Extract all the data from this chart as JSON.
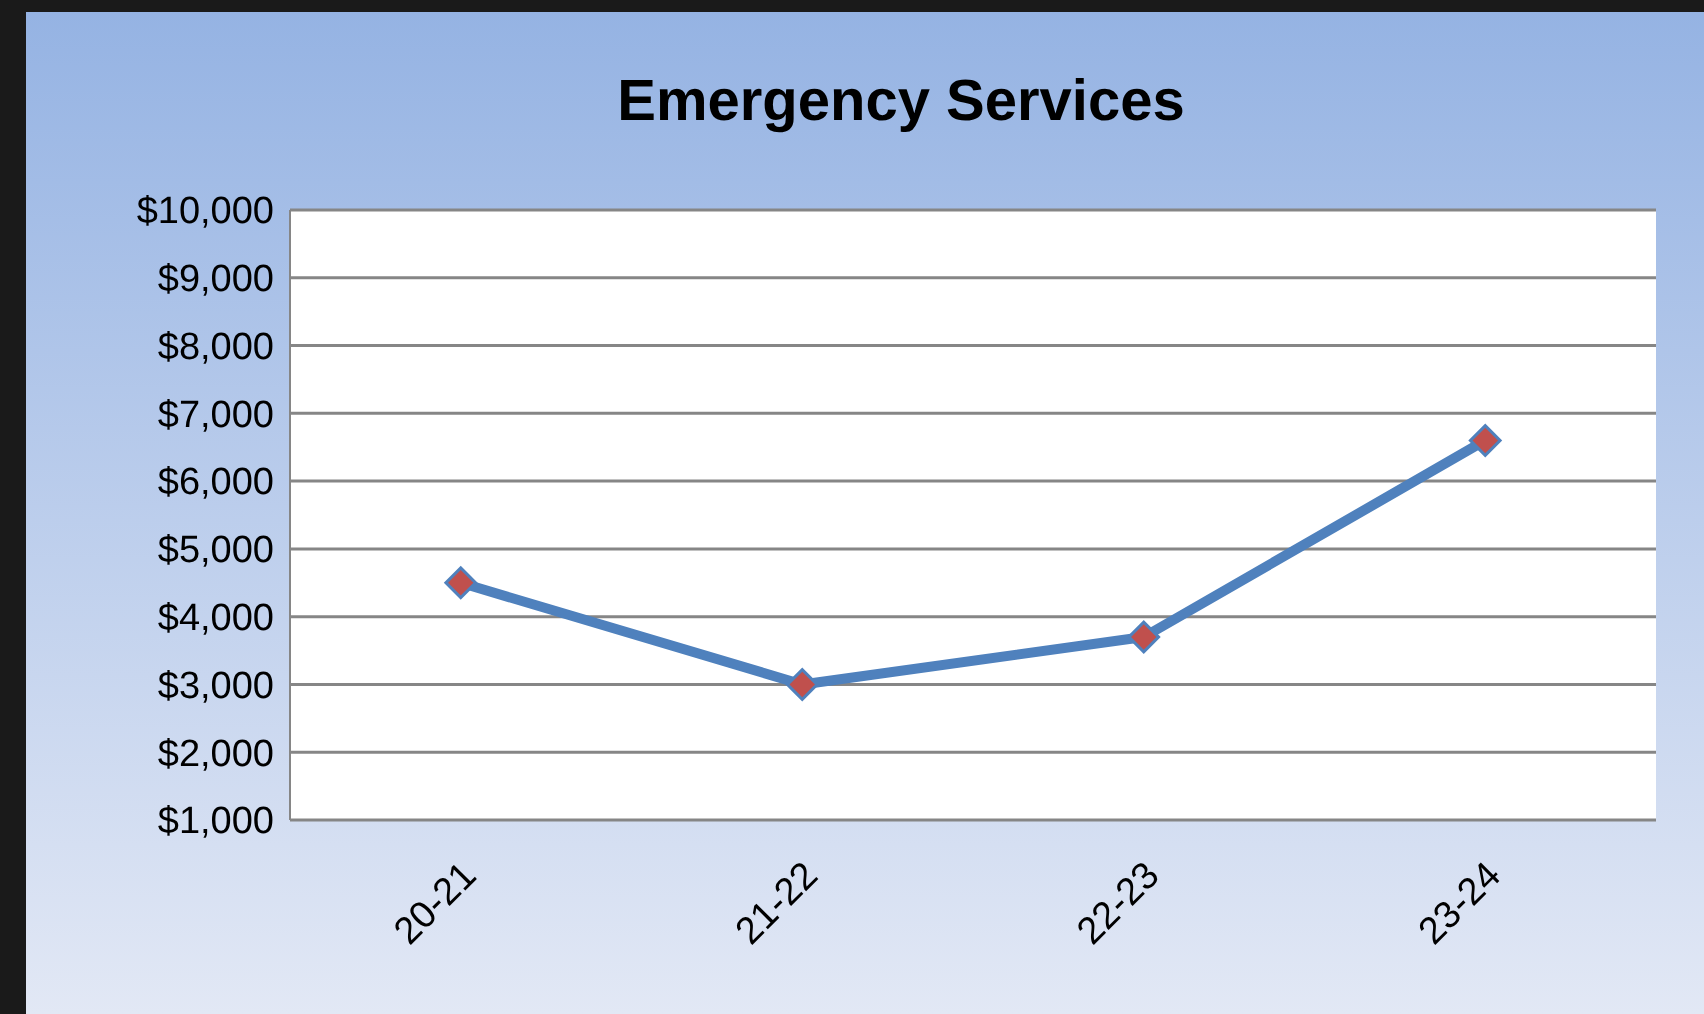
{
  "chart_data": {
    "type": "line",
    "title": "Emergency Services",
    "categories": [
      "20-21",
      "21-22",
      "22-23",
      "23-24"
    ],
    "series": [
      {
        "color": "#4f81bd",
        "values": [
          4500,
          3000,
          3700,
          6600
        ]
      }
    ],
    "ylim": [
      1000,
      10000
    ],
    "yticks": [
      {
        "value": 1000,
        "label": "$1,000"
      },
      {
        "value": 2000,
        "label": "$2,000"
      },
      {
        "value": 3000,
        "label": "$3,000"
      },
      {
        "value": 4000,
        "label": "$4,000"
      },
      {
        "value": 5000,
        "label": "$5,000"
      },
      {
        "value": 6000,
        "label": "$6,000"
      },
      {
        "value": 7000,
        "label": "$7,000"
      },
      {
        "value": 8000,
        "label": "$8,000"
      },
      {
        "value": 9000,
        "label": "$9,000"
      },
      {
        "value": 10000,
        "label": "$10,000"
      }
    ],
    "grid": "y",
    "marker": "diamond",
    "line_style": "solid"
  }
}
